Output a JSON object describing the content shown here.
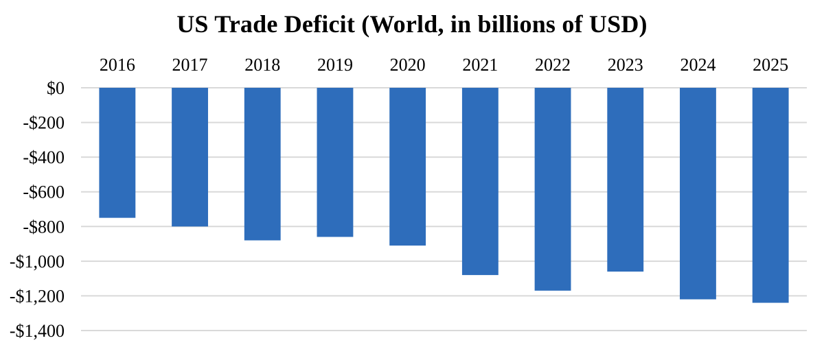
{
  "chart_data": {
    "type": "bar",
    "title": "US Trade Deficit (World, in billions of USD)",
    "xlabel": "",
    "ylabel": "",
    "categories": [
      "2016",
      "2017",
      "2018",
      "2019",
      "2020",
      "2021",
      "2022",
      "2023",
      "2024",
      "2025"
    ],
    "values": [
      -750,
      -800,
      -880,
      -860,
      -910,
      -1080,
      -1170,
      -1060,
      -1220,
      -1240
    ],
    "ylim": [
      -1400,
      0
    ],
    "yticks": [
      0,
      -200,
      -400,
      -600,
      -800,
      -1000,
      -1200,
      -1400
    ],
    "ytick_labels": [
      "$0",
      "-$200",
      "-$400",
      "-$600",
      "-$800",
      "-$1,000",
      "-$1,200",
      "-$1,400"
    ],
    "x_axis_position": "top",
    "grid": true,
    "bar_color": "#2E6DBB",
    "grid_color": "#D9D9D9"
  }
}
